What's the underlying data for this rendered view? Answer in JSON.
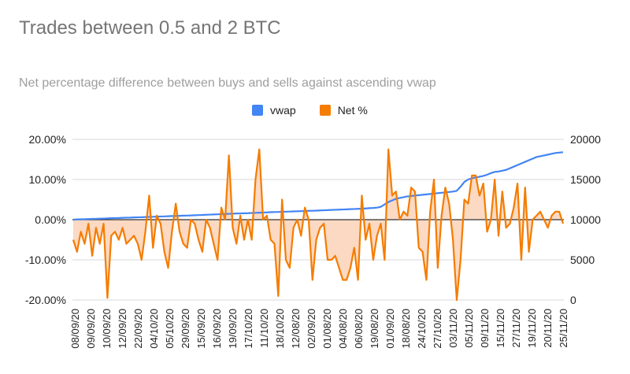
{
  "colors": {
    "vwap": "#4285f4",
    "net": "#f57c00",
    "net_fill": "#fbd9c3",
    "grid": "#d9d9d9",
    "zero": "#333333"
  },
  "chart_data": {
    "type": "line",
    "title": "Trades between 0.5 and 2 BTC",
    "subtitle": "Net percentage difference between buys and sells against ascending vwap",
    "legend_position": "top",
    "y_left": {
      "ticks": [
        -0.2,
        -0.1,
        0,
        0.1,
        0.2
      ],
      "tick_labels": [
        "-20.00%",
        "-10.00%",
        "0.00%",
        "10.00%",
        "20.00%"
      ],
      "range": [
        -0.2,
        0.2
      ]
    },
    "y_right": {
      "ticks": [
        0,
        5000,
        10000,
        15000,
        20000
      ],
      "tick_labels": [
        "0",
        "5000",
        "10000",
        "15000",
        "20000"
      ],
      "range": [
        0,
        20000
      ]
    },
    "x_tick_labels": [
      "08/09/20",
      "09/09/20",
      "10/09/20",
      "12/09/20",
      "22/09/20",
      "04/10/20",
      "05/10/20",
      "29/09/20",
      "15/09/20",
      "16/09/20",
      "19/09/20",
      "17/10/20",
      "11/10/20",
      "18/10/20",
      "12/08/20",
      "02/09/20",
      "01/08/20",
      "04/08/20",
      "06/08/20",
      "19/08/20",
      "01/09/20",
      "18/08/20",
      "24/10/20",
      "27/10/20",
      "03/11/20",
      "05/11/20",
      "09/11/20",
      "15/11/20",
      "27/11/20",
      "19/11/20",
      "20/11/20",
      "25/11/20"
    ],
    "series": [
      {
        "name": "vwap",
        "axis": "right",
        "values": [
          10000,
          10040,
          10050,
          10060,
          10080,
          10100,
          10110,
          10130,
          10140,
          10160,
          10180,
          10200,
          10210,
          10230,
          10250,
          10260,
          10280,
          10300,
          10310,
          10330,
          10350,
          10360,
          10380,
          10400,
          10410,
          10430,
          10450,
          10460,
          10480,
          10500,
          10510,
          10530,
          10550,
          10570,
          10590,
          10610,
          10630,
          10650,
          10670,
          10690,
          10710,
          10730,
          10750,
          10770,
          10780,
          10800,
          10810,
          10830,
          10850,
          10870,
          10890,
          10910,
          10930,
          10950,
          10960,
          10980,
          11000,
          11010,
          11030,
          11050,
          11060,
          11080,
          11100,
          11110,
          11130,
          11150,
          11170,
          11190,
          11210,
          11230,
          11250,
          11270,
          11290,
          11310,
          11330,
          11350,
          11370,
          11400,
          11430,
          11460,
          11500,
          11600,
          11900,
          12200,
          12400,
          12600,
          12700,
          12800,
          12900,
          12950,
          13000,
          13050,
          13100,
          13150,
          13200,
          13250,
          13300,
          13350,
          13400,
          13450,
          13500,
          13600,
          14100,
          14700,
          15000,
          15150,
          15250,
          15350,
          15450,
          15600,
          15800,
          15950,
          16000,
          16100,
          16200,
          16400,
          16600,
          16800,
          17000,
          17200,
          17400,
          17600,
          17800,
          17900,
          18000,
          18100,
          18200,
          18300,
          18350,
          18400
        ]
      },
      {
        "name": "Net %",
        "axis": "left",
        "values": [
          -0.05,
          -0.08,
          -0.03,
          -0.06,
          -0.01,
          -0.09,
          -0.02,
          -0.06,
          -0.01,
          -0.195,
          -0.04,
          -0.03,
          -0.05,
          -0.02,
          -0.06,
          -0.05,
          -0.04,
          -0.06,
          -0.1,
          -0.03,
          0.06,
          -0.07,
          0.01,
          -0.01,
          -0.08,
          -0.12,
          -0.03,
          0.04,
          -0.03,
          -0.06,
          -0.07,
          0.0,
          -0.01,
          -0.05,
          -0.08,
          0.0,
          -0.02,
          -0.06,
          -0.1,
          0.03,
          0.0,
          0.16,
          -0.02,
          -0.06,
          0.01,
          -0.05,
          0.0,
          -0.05,
          0.1,
          0.175,
          0.0,
          0.01,
          -0.05,
          -0.06,
          -0.19,
          0.05,
          -0.1,
          -0.12,
          -0.02,
          0.0,
          -0.04,
          0.03,
          0.0,
          -0.15,
          -0.05,
          -0.02,
          -0.01,
          -0.1,
          -0.1,
          -0.09,
          -0.12,
          -0.15,
          -0.15,
          -0.12,
          -0.07,
          -0.15,
          0.06,
          -0.05,
          -0.01,
          -0.1,
          -0.04,
          -0.01,
          -0.1,
          0.175,
          0.06,
          0.07,
          0.0,
          0.02,
          0.01,
          0.08,
          0.07,
          -0.07,
          -0.08,
          -0.15,
          0.02,
          0.1,
          -0.12,
          0.01,
          0.08,
          0.04,
          -0.05,
          -0.2,
          -0.1,
          0.05,
          0.04,
          0.11,
          0.11,
          0.06,
          0.09,
          -0.03,
          0.0,
          0.1,
          -0.04,
          0.07,
          -0.02,
          -0.01,
          0.03,
          0.09,
          -0.1,
          0.08,
          -0.08,
          0.0,
          0.01,
          0.02,
          0.0,
          -0.02,
          0.01,
          0.02,
          0.02,
          -0.01
        ]
      }
    ]
  }
}
